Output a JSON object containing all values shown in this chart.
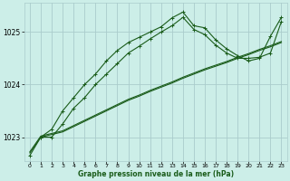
{
  "background_color": "#cceee8",
  "grid_color": "#aacccc",
  "line_color": "#1a5c1a",
  "title": "Graphe pression niveau de la mer (hPa)",
  "xlim": [
    -0.5,
    23.5
  ],
  "ylim": [
    1022.55,
    1025.55
  ],
  "yticks": [
    1023,
    1024,
    1025
  ],
  "xticks": [
    0,
    1,
    2,
    3,
    4,
    5,
    6,
    7,
    8,
    9,
    10,
    11,
    12,
    13,
    14,
    15,
    16,
    17,
    18,
    19,
    20,
    21,
    22,
    23
  ],
  "line_straight1_x": [
    0,
    1,
    2,
    3,
    4,
    5,
    6,
    7,
    8,
    9,
    10,
    11,
    12,
    13,
    14,
    15,
    16,
    17,
    18,
    19,
    20,
    21,
    22,
    23
  ],
  "line_straight1_y": [
    1022.7,
    1023.0,
    1023.05,
    1023.1,
    1023.2,
    1023.3,
    1023.4,
    1023.5,
    1023.6,
    1023.7,
    1023.78,
    1023.87,
    1023.95,
    1024.03,
    1024.12,
    1024.2,
    1024.28,
    1024.35,
    1024.42,
    1024.5,
    1024.57,
    1024.65,
    1024.72,
    1024.8
  ],
  "line_straight2_x": [
    0,
    1,
    2,
    3,
    4,
    5,
    6,
    7,
    8,
    9,
    10,
    11,
    12,
    13,
    14,
    15,
    16,
    17,
    18,
    19,
    20,
    21,
    22,
    23
  ],
  "line_straight2_y": [
    1022.72,
    1023.02,
    1023.07,
    1023.12,
    1023.22,
    1023.32,
    1023.42,
    1023.52,
    1023.62,
    1023.72,
    1023.8,
    1023.89,
    1023.97,
    1024.05,
    1024.14,
    1024.22,
    1024.3,
    1024.37,
    1024.44,
    1024.52,
    1024.59,
    1024.67,
    1024.74,
    1024.82
  ],
  "line_peaked_x": [
    0,
    1,
    2,
    3,
    4,
    5,
    6,
    7,
    8,
    9,
    10,
    11,
    12,
    13,
    14,
    15,
    16,
    17,
    18,
    19,
    20,
    21,
    22,
    23
  ],
  "line_peaked_y": [
    1022.65,
    1023.0,
    1023.0,
    1023.25,
    1023.55,
    1023.75,
    1024.0,
    1024.2,
    1024.4,
    1024.6,
    1024.73,
    1024.87,
    1025.0,
    1025.12,
    1025.28,
    1025.05,
    1024.95,
    1024.75,
    1024.6,
    1024.5,
    1024.5,
    1024.52,
    1024.6,
    1025.2
  ],
  "line_waved_x": [
    1,
    2,
    3,
    4,
    5,
    6,
    7,
    8,
    9,
    10,
    11,
    12,
    13,
    14,
    15,
    16,
    17,
    18,
    19,
    20,
    21,
    22,
    23
  ],
  "line_waved_y": [
    1023.0,
    1023.15,
    1023.5,
    1023.75,
    1024.0,
    1024.2,
    1024.45,
    1024.65,
    1024.8,
    1024.9,
    1025.0,
    1025.1,
    1025.27,
    1025.38,
    1025.12,
    1025.08,
    1024.85,
    1024.68,
    1024.55,
    1024.45,
    1024.5,
    1024.92,
    1025.28
  ]
}
